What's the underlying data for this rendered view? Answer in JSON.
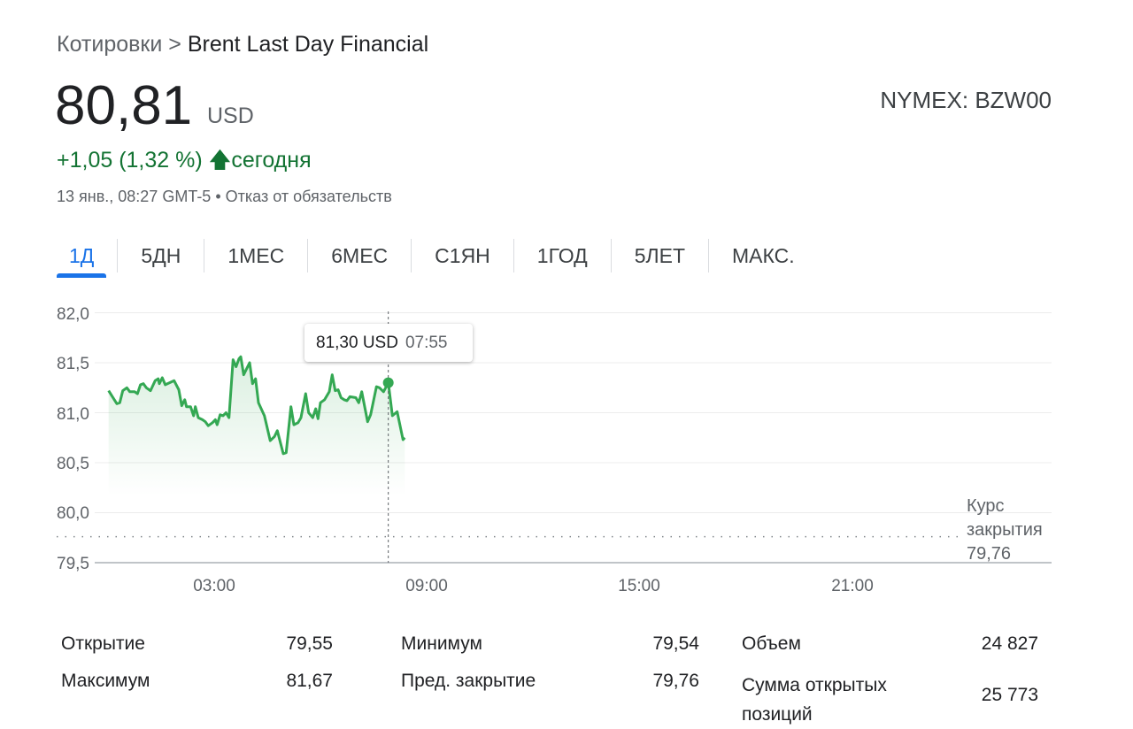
{
  "breadcrumb": {
    "parent": "Котировки",
    "separator": ">",
    "current": "Brent Last Day Financial"
  },
  "quote": {
    "price": "80,81",
    "currency": "USD",
    "exchange_ticker": "NYMEX: BZW00",
    "change": "+1,05 (1,32 %)",
    "change_icon": "arrow-up-icon",
    "change_period": "сегодня",
    "timestamp": "13 янв., 08:27 GMT-5",
    "disclaimer": "Отказ от обязательств",
    "positive_color": "#137333"
  },
  "tabs": [
    {
      "label": "1Д",
      "active": true
    },
    {
      "label": "5ДН"
    },
    {
      "label": "1МЕС"
    },
    {
      "label": "6МЕС"
    },
    {
      "label": "С1ЯН"
    },
    {
      "label": "1ГОД"
    },
    {
      "label": "5ЛЕТ"
    },
    {
      "label": "МАКС."
    }
  ],
  "tooltip": {
    "value": "81,30 USD",
    "time": "07:55"
  },
  "close_label": {
    "line1": "Курс",
    "line2": "закрытия",
    "value": "79,76"
  },
  "chart_data": {
    "type": "area",
    "line_color": "#34a853",
    "grid": true,
    "ylim": [
      79.5,
      82.0
    ],
    "y_ticks": [
      "82,0",
      "81,5",
      "81,0",
      "80,5",
      "80,0",
      "79,5"
    ],
    "y_tick_values": [
      82.0,
      81.5,
      81.0,
      80.5,
      80.0,
      79.5
    ],
    "x_range": [
      "00:00",
      "24:00"
    ],
    "x_ticks": [
      "03:00",
      "09:00",
      "15:00",
      "21:00"
    ],
    "previous_close": 79.76,
    "highlight": {
      "x": "07:55",
      "y": 81.3
    },
    "x": [
      "00:01",
      "00:15",
      "00:20",
      "00:25",
      "00:32",
      "00:37",
      "00:45",
      "00:50",
      "00:55",
      "01:00",
      "01:05",
      "01:12",
      "01:20",
      "01:25",
      "01:27",
      "01:32",
      "01:37",
      "01:52",
      "02:00",
      "02:05",
      "02:10",
      "02:13",
      "02:20",
      "02:25",
      "02:28",
      "02:33",
      "02:40",
      "02:45",
      "02:50",
      "02:57",
      "03:02",
      "03:05",
      "03:10",
      "03:15",
      "03:20",
      "03:25",
      "03:32",
      "03:37",
      "03:42",
      "03:45",
      "03:50",
      "04:00",
      "04:05",
      "04:10",
      "04:15",
      "04:25",
      "04:35",
      "04:42",
      "04:47",
      "04:57",
      "05:02",
      "05:10",
      "05:15",
      "05:22",
      "05:27",
      "05:35",
      "05:40",
      "05:47",
      "05:52",
      "05:56",
      "06:00",
      "06:07",
      "06:15",
      "06:20",
      "06:25",
      "06:30",
      "06:35",
      "06:40",
      "06:45",
      "06:50",
      "07:00",
      "07:05",
      "07:10",
      "07:20",
      "07:25",
      "07:35",
      "07:40",
      "07:47",
      "07:55",
      "08:02",
      "08:10",
      "08:20",
      "08:23"
    ],
    "y": [
      81.22,
      81.09,
      81.1,
      81.22,
      81.25,
      81.21,
      81.21,
      81.19,
      81.28,
      81.29,
      81.25,
      81.22,
      81.32,
      81.34,
      81.29,
      81.35,
      81.28,
      81.32,
      81.23,
      81.07,
      81.13,
      81.06,
      81.06,
      80.97,
      81.06,
      80.95,
      80.93,
      80.91,
      80.87,
      80.9,
      80.93,
      80.88,
      80.98,
      80.97,
      81.0,
      80.95,
      81.53,
      81.46,
      81.54,
      81.56,
      81.38,
      81.5,
      81.29,
      81.34,
      81.1,
      80.97,
      80.72,
      80.76,
      80.82,
      80.59,
      80.6,
      81.06,
      80.88,
      80.9,
      80.95,
      81.19,
      81.0,
      80.95,
      81.04,
      80.94,
      81.1,
      81.13,
      81.21,
      81.38,
      81.22,
      81.23,
      81.15,
      81.13,
      81.12,
      81.16,
      81.15,
      81.1,
      81.21,
      80.91,
      80.98,
      81.26,
      81.25,
      81.21,
      81.3,
      80.97,
      81.01,
      80.73,
      80.75
    ]
  },
  "stats": [
    {
      "label": "Открытие",
      "value": "79,55"
    },
    {
      "label": "Максимум",
      "value": "81,67"
    },
    {
      "label": "Минимум",
      "value": "79,54"
    },
    {
      "label": "Пред. закрытие",
      "value": "79,76"
    },
    {
      "label": "Объем",
      "value": "24 827"
    },
    {
      "label": "Сумма открытых позиций",
      "value": "25 773"
    }
  ]
}
